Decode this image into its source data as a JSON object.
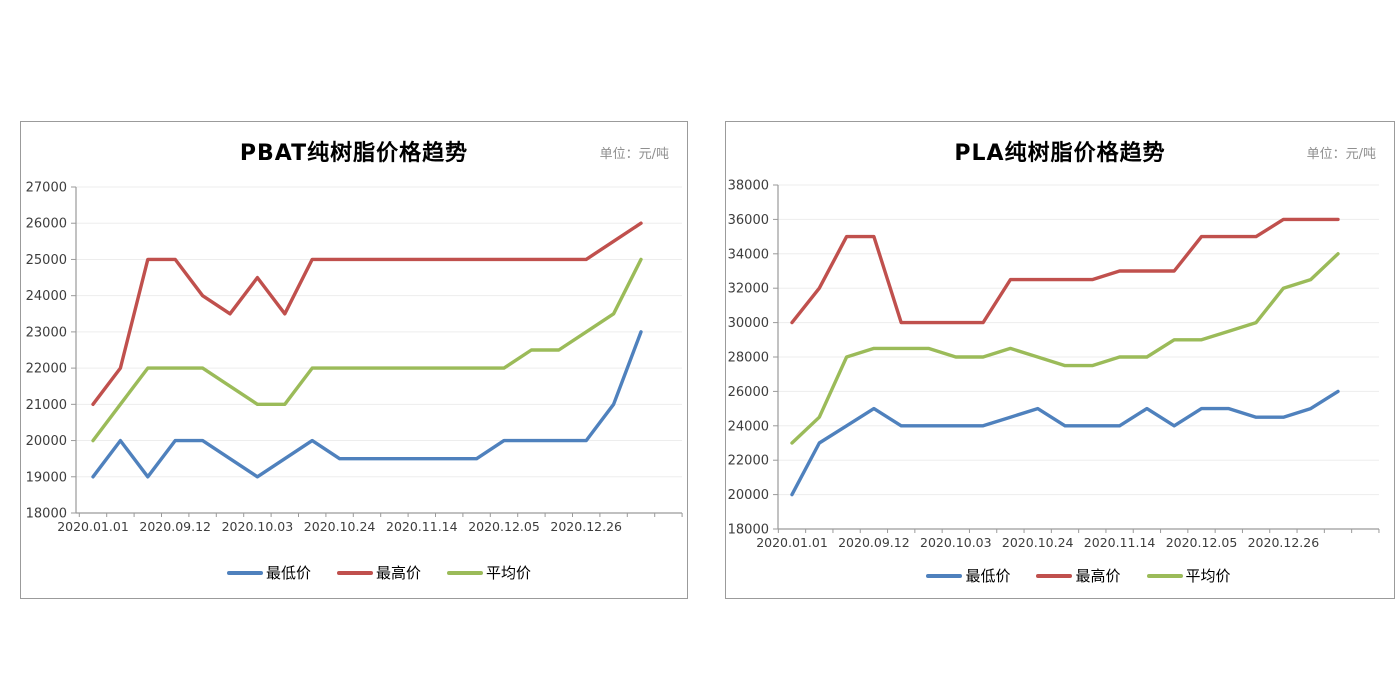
{
  "charts": [
    {
      "title": "PBAT纯树脂价格趋势",
      "unit_label": "单位：元/吨",
      "legend": [
        {
          "name": "最低价",
          "color": "#4F81BD"
        },
        {
          "name": "最高价",
          "color": "#C0504D"
        },
        {
          "name": "平均价",
          "color": "#9BBB59"
        }
      ],
      "chart_data": {
        "type": "line",
        "title": "PBAT纯树脂价格趋势",
        "unit": "元/吨",
        "n_points": 21,
        "x_interval": "weekly, labels every 3 points",
        "x_tick_labels": [
          "2020.01.01",
          "2020.09.12",
          "2020.10.03",
          "2020.10.24",
          "2020.11.14",
          "2020.12.05",
          "2020.12.26"
        ],
        "label_every": 3,
        "ylim": [
          18000,
          27000
        ],
        "ytick_step": 1000,
        "grid": "horizontal",
        "legend_position": "bottom",
        "series": [
          {
            "name": "最低价",
            "color": "#4F81BD",
            "values": [
              19000,
              20000,
              19000,
              20000,
              20000,
              19500,
              19000,
              19500,
              20000,
              19500,
              19500,
              19500,
              19500,
              19500,
              19500,
              20000,
              20000,
              20000,
              20000,
              21000,
              23000
            ]
          },
          {
            "name": "最高价",
            "color": "#C0504D",
            "values": [
              21000,
              22000,
              25000,
              25000,
              24000,
              23500,
              24500,
              23500,
              25000,
              25000,
              25000,
              25000,
              25000,
              25000,
              25000,
              25000,
              25000,
              25000,
              25000,
              25500,
              26000
            ]
          },
          {
            "name": "平均价",
            "color": "#9BBB59",
            "values": [
              20000,
              21000,
              22000,
              22000,
              22000,
              21500,
              21000,
              21000,
              22000,
              22000,
              22000,
              22000,
              22000,
              22000,
              22000,
              22000,
              22500,
              22500,
              23000,
              23500,
              25000
            ]
          }
        ]
      }
    },
    {
      "title": "PLA纯树脂价格趋势",
      "unit_label": "单位：元/吨",
      "legend": [
        {
          "name": "最低价",
          "color": "#4F81BD"
        },
        {
          "name": "最高价",
          "color": "#C0504D"
        },
        {
          "name": "平均价",
          "color": "#9BBB59"
        }
      ],
      "chart_data": {
        "type": "line",
        "title": "PLA纯树脂价格趋势",
        "unit": "元/吨",
        "n_points": 21,
        "x_interval": "weekly, labels every 3 points",
        "x_tick_labels": [
          "2020.01.01",
          "2020.09.12",
          "2020.10.03",
          "2020.10.24",
          "2020.11.14",
          "2020.12.05",
          "2020.12.26"
        ],
        "label_every": 3,
        "ylim": [
          18000,
          38000
        ],
        "ytick_step": 2000,
        "grid": "horizontal",
        "legend_position": "bottom",
        "series": [
          {
            "name": "最低价",
            "color": "#4F81BD",
            "values": [
              20000,
              23000,
              24000,
              25000,
              24000,
              24000,
              24000,
              24000,
              24500,
              25000,
              24000,
              24000,
              24000,
              25000,
              24000,
              25000,
              25000,
              24500,
              24500,
              25000,
              26000
            ]
          },
          {
            "name": "最高价",
            "color": "#C0504D",
            "values": [
              30000,
              32000,
              35000,
              35000,
              30000,
              30000,
              30000,
              30000,
              32500,
              32500,
              32500,
              32500,
              33000,
              33000,
              33000,
              35000,
              35000,
              35000,
              36000,
              36000,
              36000
            ]
          },
          {
            "name": "平均价",
            "color": "#9BBB59",
            "values": [
              23000,
              24500,
              28000,
              28500,
              28500,
              28500,
              28000,
              28000,
              28500,
              28000,
              27500,
              27500,
              28000,
              28000,
              29000,
              29000,
              29500,
              30000,
              32000,
              32500,
              34000
            ]
          }
        ]
      }
    }
  ]
}
